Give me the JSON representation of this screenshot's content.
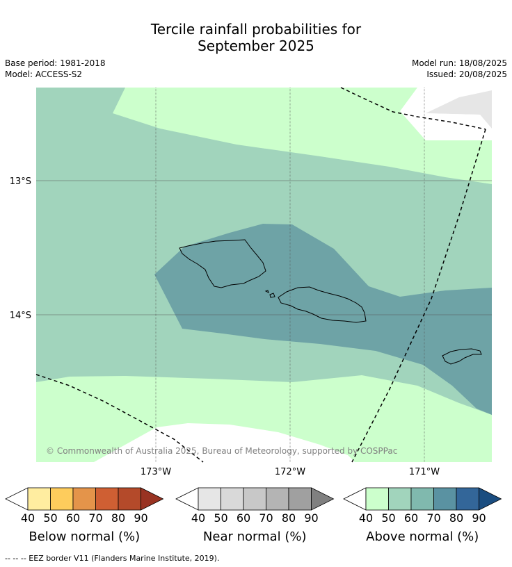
{
  "title": {
    "line1": "Tercile rainfall probabilities for",
    "line2": "September 2025"
  },
  "meta": {
    "base_period": "Base period: 1981-2018",
    "model": "Model: ACCESS-S2",
    "model_run": "Model run: 18/08/2025",
    "issued": "Issued: 20/08/2025"
  },
  "map": {
    "lat_labels": [
      "13°S",
      "14°S"
    ],
    "lon_labels": [
      "173°W",
      "172°W",
      "171°W"
    ],
    "copyright": "© Commonwealth of Australia 2025, Bureau of Meteorology, supported by COSPPac",
    "no_data_color": "#e6e6e6"
  },
  "colorbars": [
    {
      "label": "Below normal (%)",
      "ticks": [
        "40",
        "50",
        "60",
        "70",
        "80",
        "90"
      ],
      "colors": [
        "#ffeda0",
        "#fecc5c",
        "#e4944a",
        "#cf5f33",
        "#b44a2a",
        "#993322"
      ]
    },
    {
      "label": "Near normal (%)",
      "ticks": [
        "40",
        "50",
        "60",
        "70",
        "80",
        "90"
      ],
      "colors": [
        "#e6e6e6",
        "#d9d9d9",
        "#c8c8c8",
        "#b4b4b4",
        "#a0a0a0",
        "#808080"
      ]
    },
    {
      "label": "Above normal (%)",
      "ticks": [
        "40",
        "50",
        "60",
        "70",
        "80",
        "90"
      ],
      "colors": [
        "#ccffcc",
        "#a1d4bc",
        "#80b9ae",
        "#5a92a2",
        "#336699",
        "#1a4d80"
      ]
    }
  ],
  "footer": "--  --  -- EEZ border V11 (Flanders Marine Institute, 2019)."
}
